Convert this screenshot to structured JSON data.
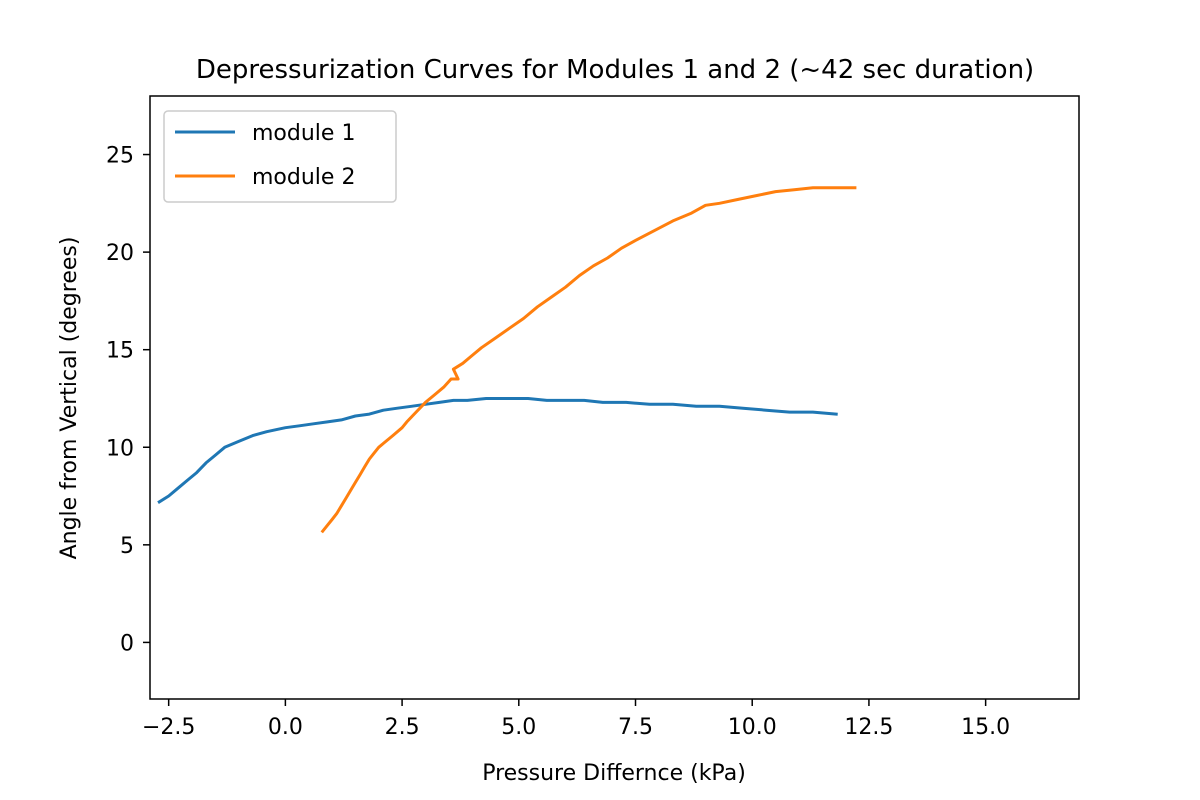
{
  "chart_data": {
    "type": "line",
    "title": "Depressurization Curves for Modules 1 and 2 (~42 sec duration)",
    "xlabel": "Pressure Differnce (kPa)",
    "ylabel": "Angle from Vertical (degrees)",
    "xlim": [
      -2.9,
      17.0
    ],
    "ylim": [
      -2.9,
      28.0
    ],
    "xticks": [
      -2.5,
      0.0,
      2.5,
      5.0,
      7.5,
      10.0,
      12.5,
      15.0
    ],
    "xtick_labels": [
      "−2.5",
      "0.0",
      "2.5",
      "5.0",
      "7.5",
      "10.0",
      "12.5",
      "15.0"
    ],
    "yticks": [
      0,
      5,
      10,
      15,
      20,
      25
    ],
    "ytick_labels": [
      "0",
      "5",
      "10",
      "15",
      "20",
      "25"
    ],
    "grid": false,
    "legend_position": "top-left",
    "series": [
      {
        "name": "module 1",
        "color": "#1f77b4",
        "x": [
          -2.7,
          -2.5,
          -2.3,
          -2.1,
          -1.9,
          -1.7,
          -1.5,
          -1.3,
          -1.0,
          -0.7,
          -0.4,
          -0.2,
          0.0,
          0.3,
          0.6,
          0.9,
          1.2,
          1.5,
          1.8,
          2.1,
          2.4,
          2.7,
          3.0,
          3.3,
          3.6,
          3.9,
          4.3,
          4.7,
          5.2,
          5.6,
          6.0,
          6.4,
          6.8,
          7.3,
          7.8,
          8.3,
          8.8,
          9.3,
          9.8,
          10.3,
          10.8,
          11.3,
          11.8
        ],
        "y": [
          7.2,
          7.5,
          7.9,
          8.3,
          8.7,
          9.2,
          9.6,
          10.0,
          10.3,
          10.6,
          10.8,
          10.9,
          11.0,
          11.1,
          11.2,
          11.3,
          11.4,
          11.6,
          11.7,
          11.9,
          12.0,
          12.1,
          12.2,
          12.3,
          12.4,
          12.4,
          12.5,
          12.5,
          12.5,
          12.4,
          12.4,
          12.4,
          12.3,
          12.3,
          12.2,
          12.2,
          12.1,
          12.1,
          12.0,
          11.9,
          11.8,
          11.8,
          11.7
        ]
      },
      {
        "name": "module 2",
        "color": "#ff7f0e",
        "x": [
          0.8,
          0.9,
          1.0,
          1.1,
          1.2,
          1.3,
          1.4,
          1.5,
          1.6,
          1.7,
          1.8,
          1.9,
          2.0,
          2.1,
          2.3,
          2.5,
          2.6,
          2.8,
          3.0,
          3.2,
          3.4,
          3.55,
          3.7,
          3.6,
          3.8,
          4.0,
          4.2,
          4.5,
          4.8,
          5.1,
          5.4,
          5.7,
          6.0,
          6.3,
          6.6,
          6.9,
          7.2,
          7.5,
          7.9,
          8.3,
          8.7,
          9.0,
          9.3,
          9.7,
          10.1,
          10.5,
          10.9,
          11.3,
          11.7,
          12.2
        ],
        "y": [
          5.7,
          6.0,
          6.3,
          6.6,
          7.0,
          7.4,
          7.8,
          8.2,
          8.6,
          9.0,
          9.4,
          9.7,
          10.0,
          10.2,
          10.6,
          11.0,
          11.3,
          11.8,
          12.3,
          12.7,
          13.1,
          13.5,
          13.5,
          14.0,
          14.3,
          14.7,
          15.1,
          15.6,
          16.1,
          16.6,
          17.2,
          17.7,
          18.2,
          18.8,
          19.3,
          19.7,
          20.2,
          20.6,
          21.1,
          21.6,
          22.0,
          22.4,
          22.5,
          22.7,
          22.9,
          23.1,
          23.2,
          23.3,
          23.3,
          23.3
        ]
      }
    ]
  }
}
